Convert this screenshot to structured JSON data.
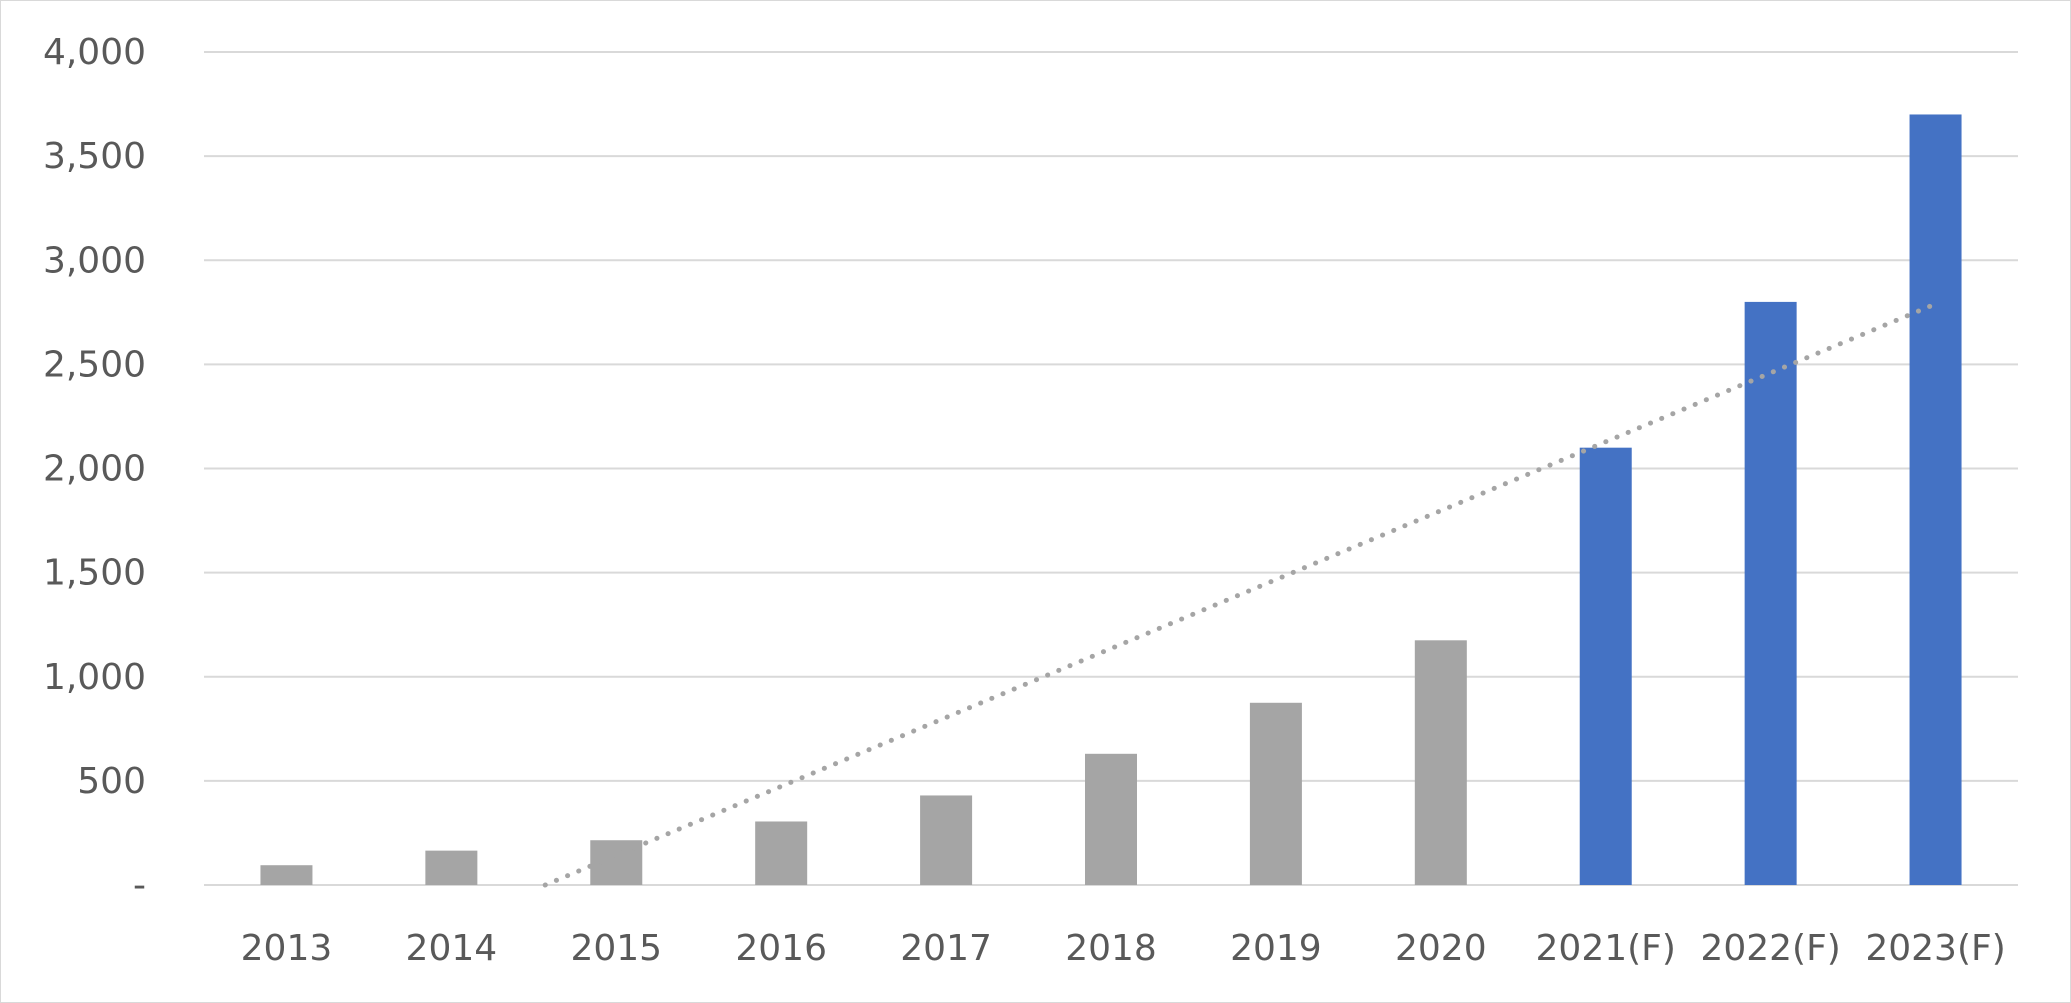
{
  "chart_data": {
    "type": "bar",
    "categories": [
      "2013",
      "2014",
      "2015",
      "2016",
      "2017",
      "2018",
      "2019",
      "2020",
      "2021(F)",
      "2022(F)",
      "2023(F)"
    ],
    "values": [
      95,
      165,
      215,
      305,
      430,
      630,
      875,
      1175,
      2100,
      2800,
      3700
    ],
    "forecast": [
      false,
      false,
      false,
      false,
      false,
      false,
      false,
      false,
      true,
      true,
      true
    ],
    "ylim": [
      0,
      4000
    ],
    "yticks": [
      0,
      500,
      1000,
      1500,
      2000,
      2500,
      3000,
      3500,
      4000
    ],
    "ytick_labels": [
      "-",
      "500",
      "1,000",
      "1,500",
      "2,000",
      "2,500",
      "3,000",
      "3,500",
      "4,000"
    ],
    "title": "",
    "xlabel": "",
    "ylabel": "",
    "grid": true,
    "legend": "none",
    "trendline": {
      "type": "linear",
      "style": "dotted"
    },
    "colors": {
      "actual": "#a5a5a5",
      "forecast": "#4472c4",
      "trendline": "#a5a5a5",
      "grid": "#d9d9d9",
      "axis": "#d9d9d9",
      "text": "#595959"
    }
  }
}
